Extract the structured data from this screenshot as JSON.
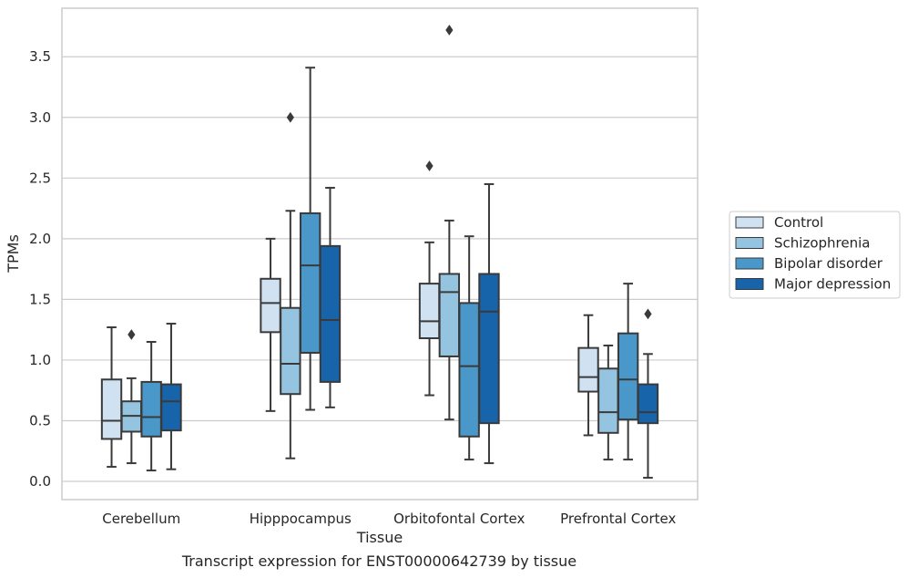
{
  "caption": "Transcript expression for ENST00000642739 by tissue",
  "chart_data": {
    "type": "box",
    "xlabel": "Tissue",
    "ylabel": "TPMs",
    "ylim": [
      -0.15,
      3.9
    ],
    "yticks": [
      0.0,
      0.5,
      1.0,
      1.5,
      2.0,
      2.5,
      3.0,
      3.5
    ],
    "ytick_labels": [
      "0.0",
      "0.5",
      "1.0",
      "1.5",
      "2.0",
      "2.5",
      "3.0",
      "3.5"
    ],
    "grid": "horizontal",
    "legend_position": "right",
    "categories": [
      "Cerebellum",
      "Hipppocampus",
      "Orbitofontal Cortex",
      "Prefrontal Cortex"
    ],
    "series": [
      {
        "name": "Control",
        "color": "#d0e1f2",
        "boxes": [
          {
            "whislo": 0.12,
            "q1": 0.35,
            "med": 0.5,
            "q3": 0.84,
            "whishi": 1.27,
            "fliers": []
          },
          {
            "whislo": 0.58,
            "q1": 1.23,
            "med": 1.47,
            "q3": 1.67,
            "whishi": 2.0,
            "fliers": []
          },
          {
            "whislo": 0.71,
            "q1": 1.18,
            "med": 1.32,
            "q3": 1.63,
            "whishi": 1.97,
            "fliers": [
              2.6
            ]
          },
          {
            "whislo": 0.38,
            "q1": 0.74,
            "med": 0.86,
            "q3": 1.1,
            "whishi": 1.37,
            "fliers": []
          }
        ]
      },
      {
        "name": "Schizophrenia",
        "color": "#94c4df",
        "boxes": [
          {
            "whislo": 0.15,
            "q1": 0.41,
            "med": 0.54,
            "q3": 0.66,
            "whishi": 0.85,
            "fliers": [
              1.21
            ]
          },
          {
            "whislo": 0.19,
            "q1": 0.72,
            "med": 0.97,
            "q3": 1.43,
            "whishi": 2.23,
            "fliers": [
              3.0
            ]
          },
          {
            "whislo": 0.51,
            "q1": 1.03,
            "med": 1.56,
            "q3": 1.71,
            "whishi": 2.15,
            "fliers": [
              3.72
            ]
          },
          {
            "whislo": 0.18,
            "q1": 0.4,
            "med": 0.57,
            "q3": 0.93,
            "whishi": 1.12,
            "fliers": []
          }
        ]
      },
      {
        "name": "Bipolar disorder",
        "color": "#4a98c9",
        "boxes": [
          {
            "whislo": 0.09,
            "q1": 0.37,
            "med": 0.53,
            "q3": 0.82,
            "whishi": 1.15,
            "fliers": []
          },
          {
            "whislo": 0.59,
            "q1": 1.06,
            "med": 1.78,
            "q3": 2.21,
            "whishi": 3.41,
            "fliers": []
          },
          {
            "whislo": 0.18,
            "q1": 0.37,
            "med": 0.95,
            "q3": 1.47,
            "whishi": 2.02,
            "fliers": []
          },
          {
            "whislo": 0.18,
            "q1": 0.51,
            "med": 0.84,
            "q3": 1.22,
            "whishi": 1.63,
            "fliers": []
          }
        ]
      },
      {
        "name": "Major depression",
        "color": "#1764ab",
        "boxes": [
          {
            "whislo": 0.1,
            "q1": 0.42,
            "med": 0.66,
            "q3": 0.8,
            "whishi": 1.3,
            "fliers": []
          },
          {
            "whislo": 0.61,
            "q1": 0.82,
            "med": 1.33,
            "q3": 1.94,
            "whishi": 2.42,
            "fliers": []
          },
          {
            "whislo": 0.15,
            "q1": 0.48,
            "med": 1.4,
            "q3": 1.71,
            "whishi": 2.45,
            "fliers": []
          },
          {
            "whislo": 0.03,
            "q1": 0.48,
            "med": 0.57,
            "q3": 0.8,
            "whishi": 1.05,
            "fliers": [
              1.38
            ]
          }
        ]
      }
    ]
  },
  "colors": {
    "grid": "#cccccc",
    "frame": "#cccccc",
    "box_edge": "#3a3a3a"
  }
}
